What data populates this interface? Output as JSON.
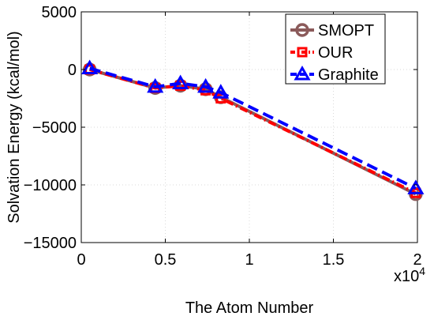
{
  "chart_data": {
    "type": "line",
    "xlabel": "The Atom Number",
    "ylabel": "Solvation Energy (kcal/mol)",
    "x_multiplier_label": "x10",
    "x_multiplier_exponent": "4",
    "xlim": [
      0,
      20000
    ],
    "ylim": [
      -15000,
      5000
    ],
    "x_ticks": [
      0,
      5000,
      10000,
      15000,
      20000
    ],
    "x_tick_labels": [
      "0",
      "0.5",
      "1",
      "1.5",
      "2"
    ],
    "y_ticks": [
      5000,
      0,
      -5000,
      -10000,
      -15000
    ],
    "y_tick_labels": [
      "5000",
      "0",
      "−5000",
      "−10000",
      "−15000"
    ],
    "grid": true,
    "legend_position": "top-right",
    "series": [
      {
        "name": "SMOPT",
        "color": "#8B5A5A",
        "marker": "circle",
        "line_style": "solid",
        "x": [
          500,
          4400,
          5900,
          7400,
          8300,
          19900
        ],
        "y": [
          0,
          -1600,
          -1400,
          -1700,
          -2400,
          -10800
        ]
      },
      {
        "name": "OUR",
        "color": "#ff0000",
        "marker": "square",
        "line_style": "dashdot",
        "x": [
          500,
          4400,
          5900,
          7400,
          8300,
          19900
        ],
        "y": [
          0,
          -1600,
          -1400,
          -1800,
          -2500,
          -10700
        ]
      },
      {
        "name": "Graphite",
        "color": "#0000ff",
        "marker": "triangle",
        "line_style": "dashed",
        "x": [
          500,
          4400,
          5900,
          7400,
          8300,
          19900
        ],
        "y": [
          100,
          -1500,
          -1200,
          -1500,
          -2000,
          -10300
        ]
      }
    ]
  }
}
